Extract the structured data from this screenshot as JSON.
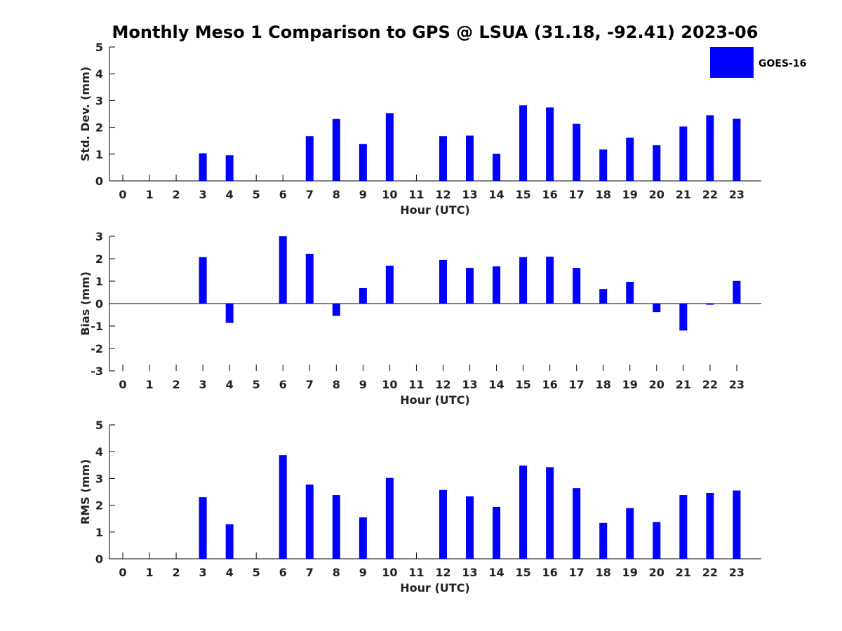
{
  "title": "Monthly Meso 1 Comparison to GPS @ LSUA (31.18, -92.41) 2023-06",
  "legend": {
    "label": "GOES-16",
    "color": "#0000ff",
    "placement": "top-right"
  },
  "chart_data": [
    {
      "type": "bar",
      "name": "std-dev",
      "ylabel": "Std. Dev. (mm)",
      "xlabel": "Hour (UTC)",
      "ylim": [
        0,
        5
      ],
      "yticks": [
        0,
        1,
        2,
        3,
        4,
        5
      ],
      "categories": [
        "0",
        "1",
        "2",
        "3",
        "4",
        "5",
        "6",
        "7",
        "8",
        "9",
        "10",
        "11",
        "12",
        "13",
        "14",
        "15",
        "16",
        "17",
        "18",
        "19",
        "20",
        "21",
        "22",
        "23"
      ],
      "series": [
        {
          "name": "GOES-16",
          "color": "#0000ff",
          "values": [
            null,
            null,
            null,
            1.03,
            0.96,
            null,
            null,
            1.67,
            2.31,
            1.38,
            2.53,
            null,
            1.67,
            1.69,
            1.01,
            2.82,
            2.74,
            2.13,
            1.17,
            1.61,
            1.33,
            2.03,
            2.45,
            2.32
          ]
        }
      ]
    },
    {
      "type": "bar",
      "name": "bias",
      "ylabel": "Bias (mm)",
      "xlabel": "Hour (UTC)",
      "ylim": [
        -3,
        3
      ],
      "yticks": [
        -3,
        -2,
        -1,
        0,
        1,
        2,
        3
      ],
      "categories": [
        "0",
        "1",
        "2",
        "3",
        "4",
        "5",
        "6",
        "7",
        "8",
        "9",
        "10",
        "11",
        "12",
        "13",
        "14",
        "15",
        "16",
        "17",
        "18",
        "19",
        "20",
        "21",
        "22",
        "23"
      ],
      "series": [
        {
          "name": "GOES-16",
          "color": "#0000ff",
          "values": [
            null,
            null,
            null,
            2.07,
            -0.86,
            null,
            3.0,
            2.22,
            -0.55,
            0.69,
            1.69,
            null,
            1.94,
            1.59,
            1.66,
            2.07,
            2.09,
            1.59,
            0.65,
            0.97,
            -0.38,
            -1.2,
            -0.05,
            1.01
          ]
        }
      ]
    },
    {
      "type": "bar",
      "name": "rms",
      "ylabel": "RMS (mm)",
      "xlabel": "Hour (UTC)",
      "ylim": [
        0,
        5
      ],
      "yticks": [
        0,
        1,
        2,
        3,
        4,
        5
      ],
      "categories": [
        "0",
        "1",
        "2",
        "3",
        "4",
        "5",
        "6",
        "7",
        "8",
        "9",
        "10",
        "11",
        "12",
        "13",
        "14",
        "15",
        "16",
        "17",
        "18",
        "19",
        "20",
        "21",
        "22",
        "23"
      ],
      "series": [
        {
          "name": "GOES-16",
          "color": "#0000ff",
          "values": [
            null,
            null,
            null,
            2.3,
            1.29,
            null,
            3.87,
            2.77,
            2.38,
            1.55,
            3.02,
            null,
            2.57,
            2.33,
            1.94,
            3.48,
            3.42,
            2.64,
            1.34,
            1.89,
            1.37,
            2.38,
            2.46,
            2.55
          ]
        }
      ]
    }
  ]
}
